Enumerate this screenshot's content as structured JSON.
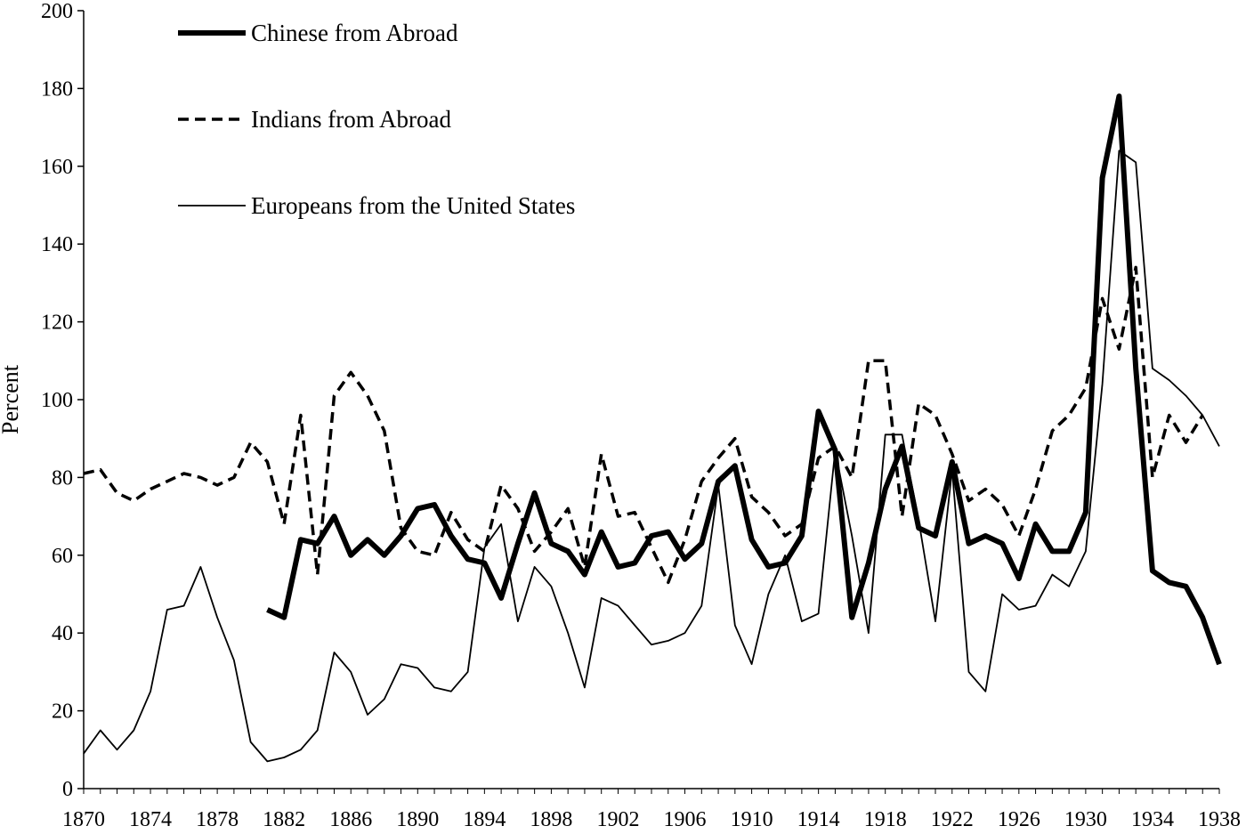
{
  "chart_data": {
    "type": "line",
    "title": "",
    "xlabel": "",
    "ylabel": "Percent",
    "xlim": [
      1870,
      1938
    ],
    "ylim": [
      0,
      200
    ],
    "x_ticks": [
      1870,
      1874,
      1878,
      1882,
      1886,
      1890,
      1894,
      1898,
      1902,
      1906,
      1910,
      1914,
      1918,
      1922,
      1926,
      1930,
      1934,
      1938
    ],
    "x_tick_labels": [
      "1870",
      "1874",
      "1878",
      "1882",
      "1886",
      "1890",
      "1894",
      "1898",
      "1902",
      "1906",
      "1910",
      "1914",
      "1918",
      "1922",
      "1926",
      "1930",
      "1934",
      "1938"
    ],
    "y_ticks": [
      0,
      20,
      40,
      60,
      80,
      100,
      120,
      140,
      160,
      180,
      200
    ],
    "y_tick_labels": [
      "0",
      "20",
      "40",
      "60",
      "80",
      "100",
      "120",
      "140",
      "160",
      "180",
      "200"
    ],
    "grid": false,
    "legend_position": "top-left",
    "series": [
      {
        "name": "Chinese from Abroad",
        "style": "thick-solid",
        "color": "#000000",
        "points": [
          [
            1881,
            46
          ],
          [
            1882,
            44
          ],
          [
            1883,
            64
          ],
          [
            1884,
            63
          ],
          [
            1885,
            70
          ],
          [
            1886,
            60
          ],
          [
            1887,
            64
          ],
          [
            1888,
            60
          ],
          [
            1889,
            65
          ],
          [
            1890,
            72
          ],
          [
            1891,
            73
          ],
          [
            1892,
            65
          ],
          [
            1893,
            59
          ],
          [
            1894,
            58
          ],
          [
            1895,
            49
          ],
          [
            1896,
            63
          ],
          [
            1897,
            76
          ],
          [
            1898,
            63
          ],
          [
            1899,
            61
          ],
          [
            1900,
            55
          ],
          [
            1901,
            66
          ],
          [
            1902,
            57
          ],
          [
            1903,
            58
          ],
          [
            1904,
            65
          ],
          [
            1905,
            66
          ],
          [
            1906,
            59
          ],
          [
            1907,
            63
          ],
          [
            1908,
            79
          ],
          [
            1909,
            83
          ],
          [
            1910,
            64
          ],
          [
            1911,
            57
          ],
          [
            1912,
            58
          ],
          [
            1913,
            65
          ],
          [
            1914,
            97
          ],
          [
            1915,
            87
          ],
          [
            1916,
            44
          ],
          [
            1917,
            58
          ],
          [
            1918,
            77
          ],
          [
            1919,
            88
          ],
          [
            1920,
            67
          ],
          [
            1921,
            65
          ],
          [
            1922,
            84
          ],
          [
            1923,
            63
          ],
          [
            1924,
            65
          ],
          [
            1925,
            63
          ],
          [
            1926,
            54
          ],
          [
            1927,
            68
          ],
          [
            1928,
            61
          ],
          [
            1929,
            61
          ],
          [
            1930,
            71
          ],
          [
            1931,
            157
          ],
          [
            1932,
            178
          ],
          [
            1933,
            108
          ],
          [
            1934,
            56
          ],
          [
            1935,
            53
          ],
          [
            1936,
            52
          ],
          [
            1937,
            44
          ],
          [
            1938,
            32
          ]
        ]
      },
      {
        "name": "Indians from Abroad",
        "style": "dashed",
        "color": "#000000",
        "points": [
          [
            1870,
            81
          ],
          [
            1871,
            82
          ],
          [
            1872,
            76
          ],
          [
            1873,
            74
          ],
          [
            1874,
            77
          ],
          [
            1875,
            79
          ],
          [
            1876,
            81
          ],
          [
            1877,
            80
          ],
          [
            1878,
            78
          ],
          [
            1879,
            80
          ],
          [
            1880,
            89
          ],
          [
            1881,
            84
          ],
          [
            1882,
            68
          ],
          [
            1883,
            96
          ],
          [
            1884,
            55
          ],
          [
            1885,
            101
          ],
          [
            1886,
            107
          ],
          [
            1887,
            101
          ],
          [
            1888,
            92
          ],
          [
            1889,
            67
          ],
          [
            1890,
            61
          ],
          [
            1891,
            60
          ],
          [
            1892,
            71
          ],
          [
            1893,
            64
          ],
          [
            1894,
            61
          ],
          [
            1895,
            78
          ],
          [
            1896,
            72
          ],
          [
            1897,
            61
          ],
          [
            1898,
            66
          ],
          [
            1899,
            72
          ],
          [
            1900,
            57
          ],
          [
            1901,
            86
          ],
          [
            1902,
            70
          ],
          [
            1903,
            71
          ],
          [
            1904,
            62
          ],
          [
            1905,
            53
          ],
          [
            1906,
            64
          ],
          [
            1907,
            79
          ],
          [
            1908,
            85
          ],
          [
            1909,
            90
          ],
          [
            1910,
            75
          ],
          [
            1911,
            71
          ],
          [
            1912,
            65
          ],
          [
            1913,
            68
          ],
          [
            1914,
            85
          ],
          [
            1915,
            88
          ],
          [
            1916,
            80
          ],
          [
            1917,
            110
          ],
          [
            1918,
            110
          ],
          [
            1919,
            70
          ],
          [
            1920,
            99
          ],
          [
            1921,
            96
          ],
          [
            1922,
            86
          ],
          [
            1923,
            74
          ],
          [
            1924,
            77
          ],
          [
            1925,
            73
          ],
          [
            1926,
            65
          ],
          [
            1927,
            77
          ],
          [
            1928,
            92
          ],
          [
            1929,
            96
          ],
          [
            1930,
            103
          ],
          [
            1931,
            126
          ],
          [
            1932,
            113
          ],
          [
            1933,
            134
          ],
          [
            1934,
            80
          ],
          [
            1935,
            96
          ],
          [
            1936,
            89
          ],
          [
            1937,
            96
          ]
        ]
      },
      {
        "name": "Europeans from the United States",
        "style": "thin-solid",
        "color": "#000000",
        "points": [
          [
            1870,
            9
          ],
          [
            1871,
            15
          ],
          [
            1872,
            10
          ],
          [
            1873,
            15
          ],
          [
            1874,
            25
          ],
          [
            1875,
            46
          ],
          [
            1876,
            47
          ],
          [
            1877,
            57
          ],
          [
            1878,
            44
          ],
          [
            1879,
            33
          ],
          [
            1880,
            12
          ],
          [
            1881,
            7
          ],
          [
            1882,
            8
          ],
          [
            1883,
            10
          ],
          [
            1884,
            15
          ],
          [
            1885,
            35
          ],
          [
            1886,
            30
          ],
          [
            1887,
            19
          ],
          [
            1888,
            23
          ],
          [
            1889,
            32
          ],
          [
            1890,
            31
          ],
          [
            1891,
            26
          ],
          [
            1892,
            25
          ],
          [
            1893,
            30
          ],
          [
            1894,
            62
          ],
          [
            1895,
            68
          ],
          [
            1896,
            43
          ],
          [
            1897,
            57
          ],
          [
            1898,
            52
          ],
          [
            1899,
            40
          ],
          [
            1900,
            26
          ],
          [
            1901,
            49
          ],
          [
            1902,
            47
          ],
          [
            1903,
            42
          ],
          [
            1904,
            37
          ],
          [
            1905,
            38
          ],
          [
            1906,
            40
          ],
          [
            1907,
            47
          ],
          [
            1908,
            78
          ],
          [
            1909,
            42
          ],
          [
            1910,
            32
          ],
          [
            1911,
            50
          ],
          [
            1912,
            60
          ],
          [
            1913,
            43
          ],
          [
            1914,
            45
          ],
          [
            1915,
            87
          ],
          [
            1916,
            65
          ],
          [
            1917,
            40
          ],
          [
            1918,
            91
          ],
          [
            1919,
            91
          ],
          [
            1920,
            69
          ],
          [
            1921,
            43
          ],
          [
            1922,
            82
          ],
          [
            1923,
            30
          ],
          [
            1924,
            25
          ],
          [
            1925,
            50
          ],
          [
            1926,
            46
          ],
          [
            1927,
            47
          ],
          [
            1928,
            55
          ],
          [
            1929,
            52
          ],
          [
            1930,
            61
          ],
          [
            1931,
            104
          ],
          [
            1932,
            164
          ],
          [
            1933,
            161
          ],
          [
            1934,
            108
          ],
          [
            1935,
            105
          ],
          [
            1936,
            101
          ],
          [
            1937,
            96
          ],
          [
            1938,
            88
          ]
        ]
      }
    ]
  }
}
